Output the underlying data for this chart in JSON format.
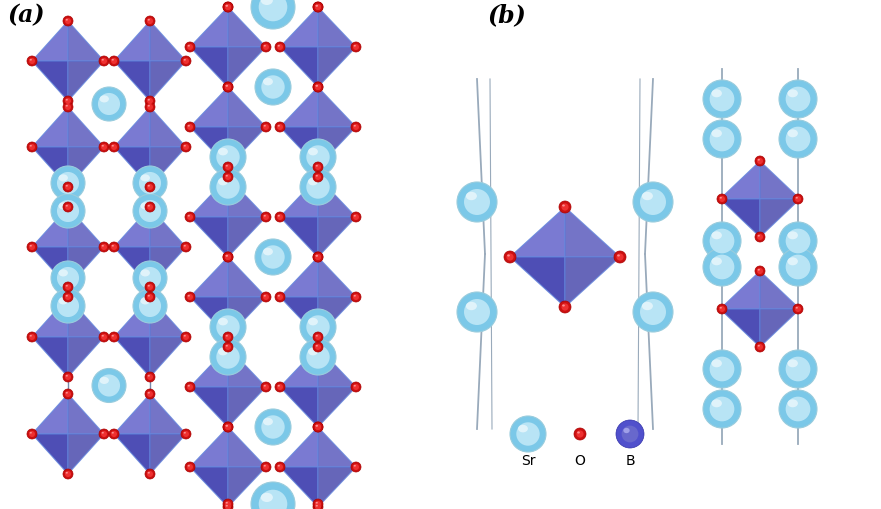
{
  "background_color": "#ffffff",
  "Sr_color_outer": "#7BC8E8",
  "Sr_color_inner": "#B8E4F5",
  "Sr_color_highlight": "#E8F6FC",
  "O_color_outer": "#CC1010",
  "O_color_inner": "#EE3030",
  "O_color_highlight": "#FF9999",
  "B_color_outer": "#5050CC",
  "B_color_inner": "#7070DD",
  "B_color_highlight": "#AAAAEE",
  "oct_color": "#4444BB",
  "oct_edge_color": "#6688DD",
  "oct_alpha": 0.82,
  "bond_color": "#7788AA",
  "label_a": "(a)",
  "label_b": "(b)",
  "legend_labels": [
    "Sr",
    "O",
    "B"
  ]
}
